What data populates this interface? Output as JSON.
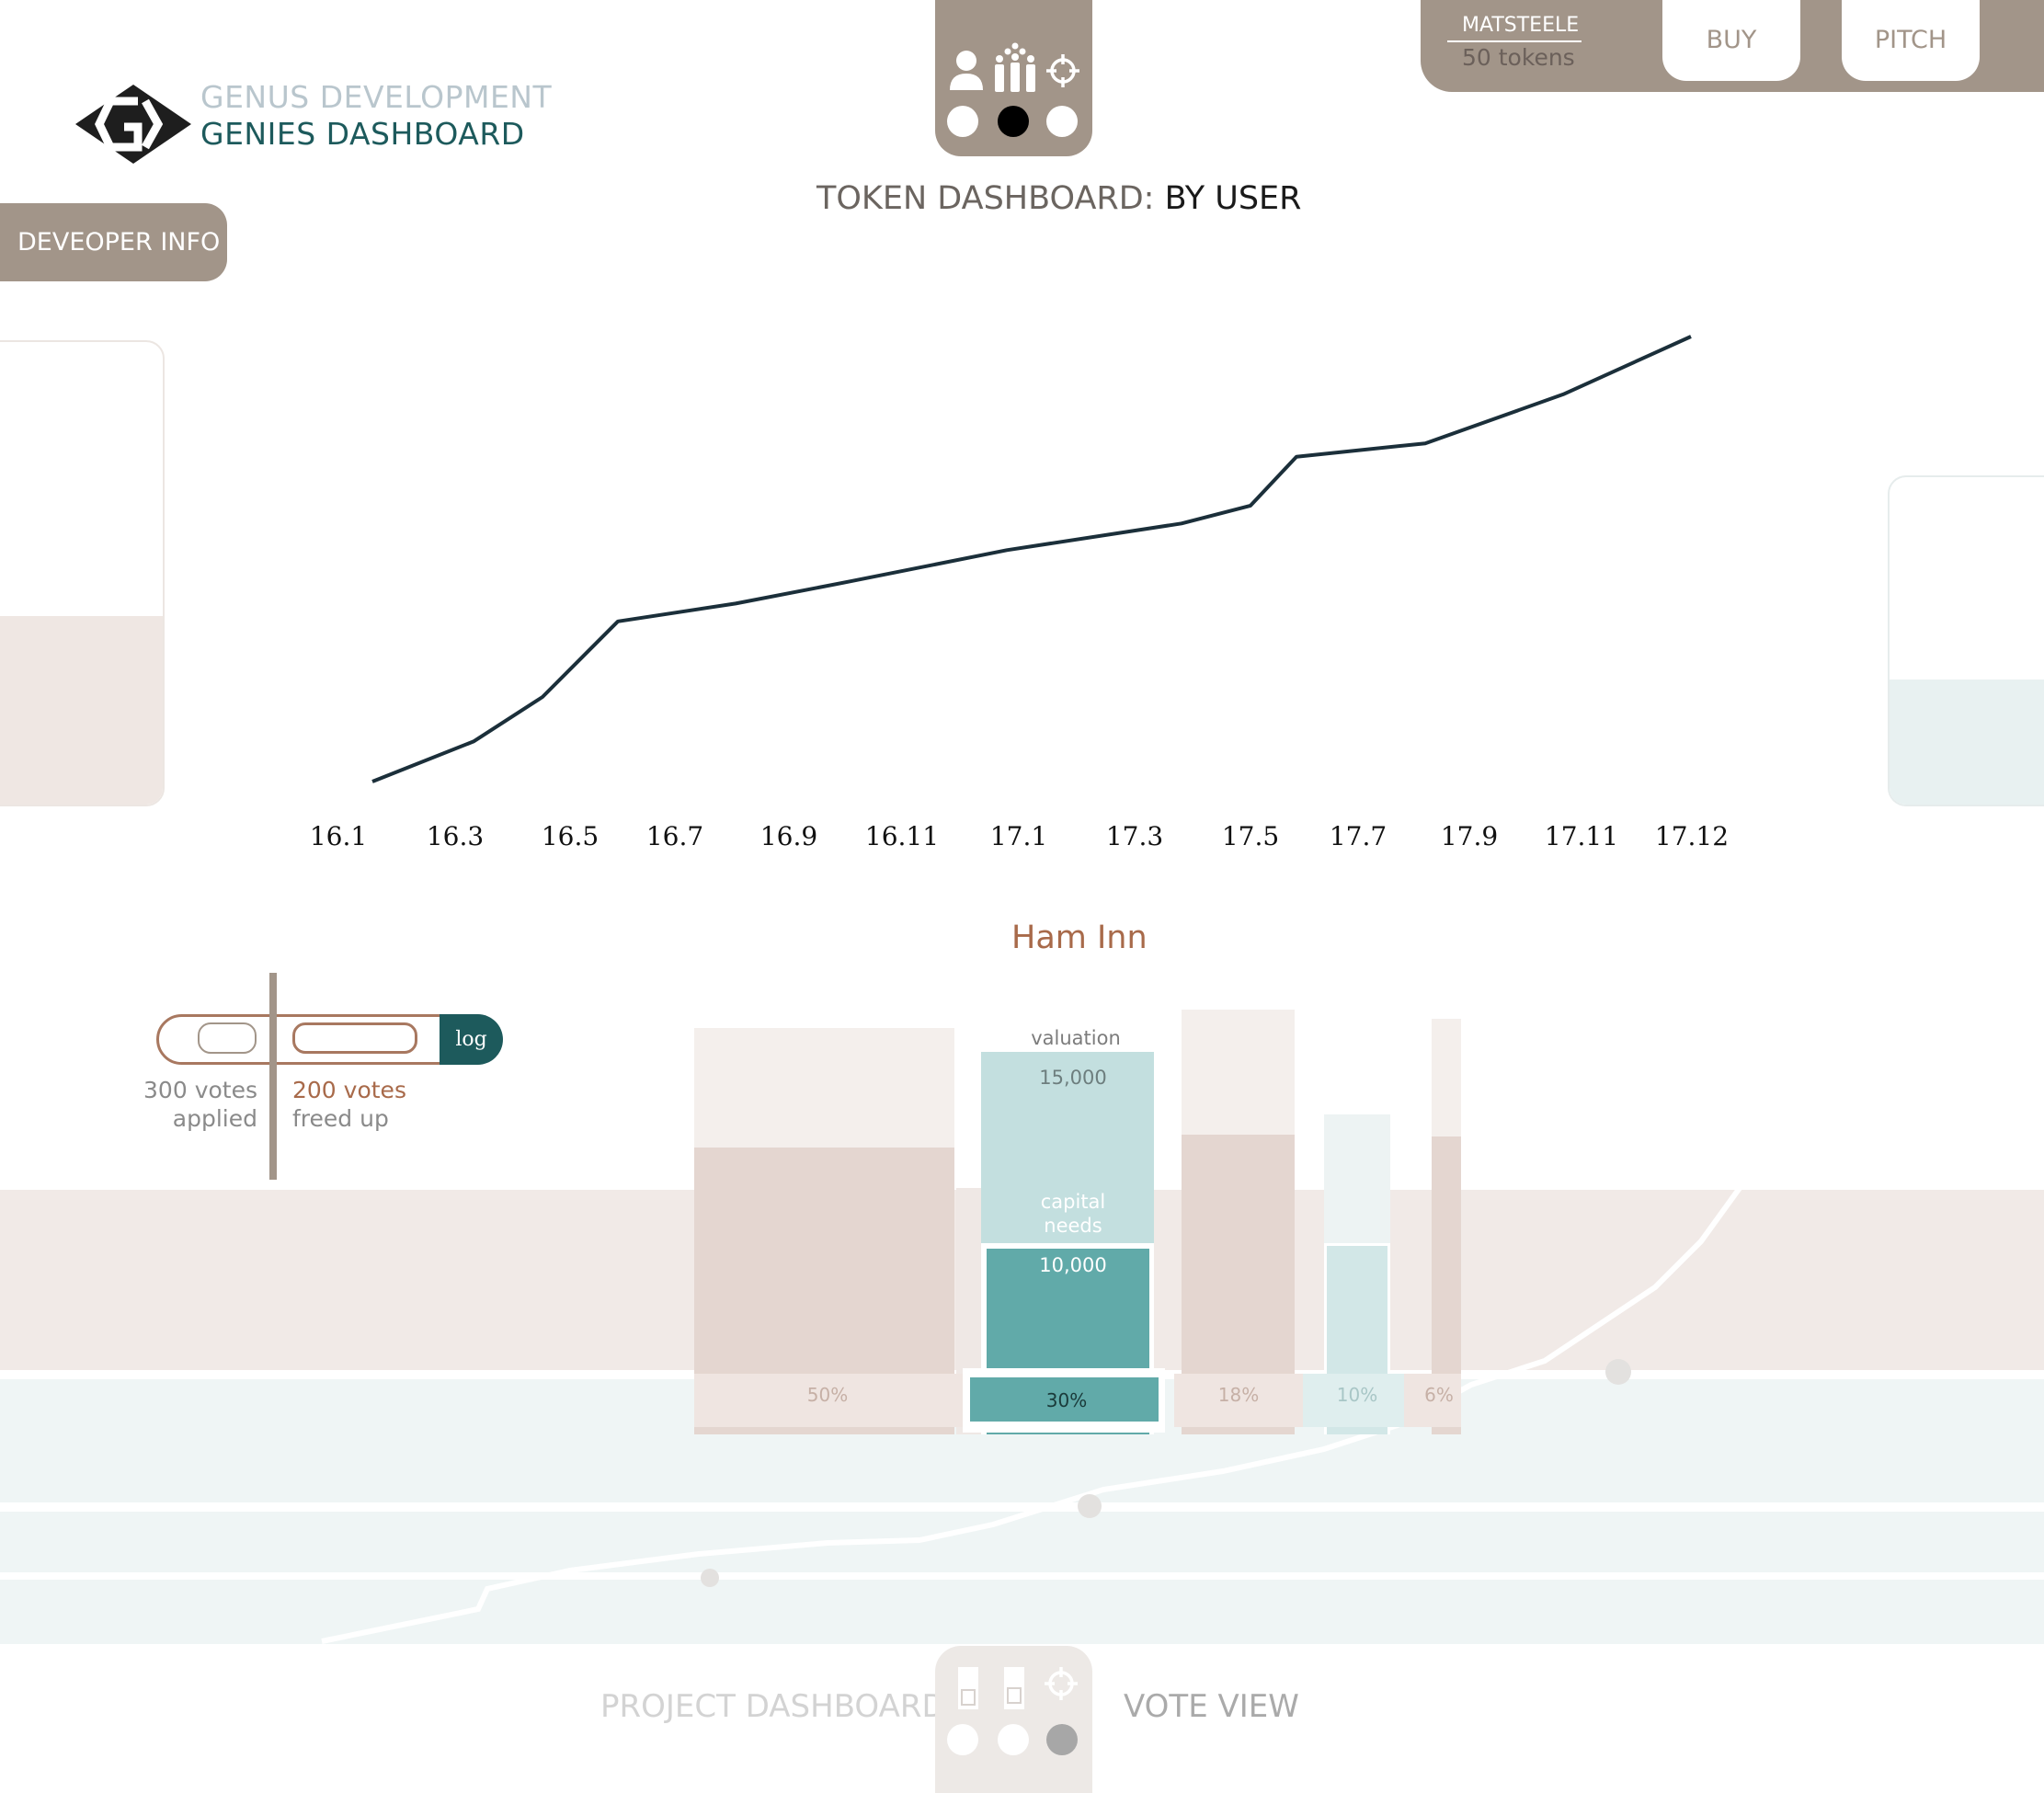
{
  "brand": {
    "company": "GENUS DEVELOPMENT",
    "product": "GENIES DASHBOARD"
  },
  "developer_tab": {
    "label": "DEVEOPER INFO"
  },
  "account": {
    "username": "MATSTEELE",
    "tokens": "50 tokens",
    "buy_label": "BUY",
    "pitch_label": "PITCH"
  },
  "view_switcher": {
    "icons": [
      "user-icon",
      "group-icon",
      "target-icon"
    ],
    "active_index": 1
  },
  "dashboard": {
    "title_prefix": "TOKEN DASHBOARD:",
    "title_view": "BY USER"
  },
  "chart_data": {
    "type": "line",
    "x": [
      "16.1",
      "16.3",
      "16.5",
      "16.7",
      "16.9",
      "16.11",
      "17.1",
      "17.3",
      "17.5",
      "17.7",
      "17.9",
      "17.11",
      "17.12"
    ],
    "values": [
      0.0,
      0.09,
      0.19,
      0.36,
      0.4,
      0.45,
      0.52,
      0.58,
      0.62,
      0.73,
      0.76,
      0.87,
      1.0
    ],
    "title": "",
    "xlabel": "",
    "ylabel": "",
    "grid": false,
    "line_color": "#1b2f3a"
  },
  "votes": {
    "applied_count": "300 votes",
    "applied_label": "applied",
    "freed_count": "200 votes",
    "freed_label": "freed up",
    "scale_label": "log"
  },
  "project": {
    "name": "Ham Inn",
    "valuation_label": "valuation",
    "valuation_value": "15,000",
    "capital_label_line1": "capital",
    "capital_label_line2": "needs",
    "capital_value": "10,000",
    "shares": [
      "50%",
      "30%",
      "18%",
      "10%",
      "6%"
    ]
  },
  "bottom_nav": {
    "project_dashboard": "PROJECT DASHBOARD",
    "vote_view": "VOTE VIEW",
    "active_index": 2
  },
  "colors": {
    "taupe": "#a29589",
    "teal_dark": "#1d5a5c",
    "teal": "#5fa9a8",
    "rust": "#a86a4a",
    "rose_light": "#f1eae7"
  }
}
